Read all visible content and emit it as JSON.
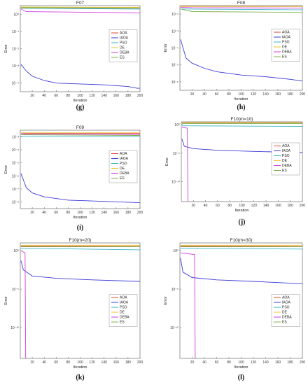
{
  "colors": {
    "AOA": "#e0453a",
    "IAOA": "#3a3ad6",
    "PSO": "#33b5c8",
    "DE": "#e8c430",
    "DEBA": "#d23ee0",
    "ES": "#7fb04a"
  },
  "chart_data": [
    {
      "type": "line",
      "title": "F07",
      "caption": "(g)",
      "xlabel": "Iteration",
      "ylabel": "Error",
      "xlim": [
        0,
        200
      ],
      "xticks": [
        20,
        40,
        60,
        80,
        100,
        120,
        140,
        160,
        180,
        200
      ],
      "yscale": "log",
      "ylim_exp": [
        -4.5,
        0.5
      ],
      "yticks": [
        {
          "e": 0,
          "label": "10⁰"
        },
        {
          "e": -1,
          "label": "10⁻¹"
        },
        {
          "e": -2,
          "label": "10⁻²"
        },
        {
          "e": -3,
          "label": "10⁻³"
        },
        {
          "e": -4,
          "label": "10⁻⁴"
        }
      ],
      "legend_position": "center-right",
      "series": [
        {
          "name": "AOA",
          "log_points": [
            [
              1,
              0.35
            ],
            [
              200,
              0.35
            ]
          ]
        },
        {
          "name": "IAOA",
          "log_points": [
            [
              1,
              -2.9
            ],
            [
              10,
              -3.3
            ],
            [
              20,
              -3.6
            ],
            [
              40,
              -3.85
            ],
            [
              60,
              -4.0
            ],
            [
              100,
              -4.05
            ],
            [
              140,
              -4.1
            ],
            [
              180,
              -4.2
            ],
            [
              195,
              -4.3
            ],
            [
              200,
              -4.3
            ]
          ]
        },
        {
          "name": "PSO",
          "log_points": [
            [
              1,
              0.35
            ],
            [
              200,
              0.3
            ]
          ]
        },
        {
          "name": "DE",
          "log_points": [
            [
              1,
              0.42
            ],
            [
              200,
              0.4
            ]
          ]
        },
        {
          "name": "DEBA",
          "log_points": [
            [
              1,
              0.3
            ],
            [
              10,
              0.15
            ],
            [
              200,
              0.08
            ]
          ]
        },
        {
          "name": "ES",
          "log_points": [
            [
              1,
              0.38
            ],
            [
              200,
              0.36
            ]
          ]
        }
      ]
    },
    {
      "type": "line",
      "title": "F08",
      "caption": "(h)",
      "xlabel": "Iteration",
      "ylabel": "Error",
      "xlim": [
        0,
        200
      ],
      "xticks": [
        20,
        40,
        60,
        80,
        100,
        120,
        140,
        160,
        180,
        200
      ],
      "yscale": "log",
      "ylim_exp": [
        -6.5,
        -1.5
      ],
      "yticks": [
        {
          "e": -2,
          "label": "10⁻²"
        },
        {
          "e": -3,
          "label": "10⁻³"
        },
        {
          "e": -4,
          "label": "10⁻⁴"
        },
        {
          "e": -5,
          "label": "10⁻⁵"
        },
        {
          "e": -6,
          "label": "10⁻⁶"
        }
      ],
      "legend_position": "center-right",
      "series": [
        {
          "name": "AOA",
          "log_points": [
            [
              1,
              -1.55
            ],
            [
              200,
              -1.55
            ]
          ]
        },
        {
          "name": "IAOA",
          "log_points": [
            [
              1,
              -3.5
            ],
            [
              10,
              -4.6
            ],
            [
              20,
              -4.9
            ],
            [
              40,
              -5.2
            ],
            [
              60,
              -5.4
            ],
            [
              100,
              -5.6
            ],
            [
              140,
              -5.7
            ],
            [
              180,
              -5.85
            ],
            [
              200,
              -5.95
            ]
          ]
        },
        {
          "name": "PSO",
          "log_points": [
            [
              1,
              -1.7
            ],
            [
              200,
              -1.75
            ]
          ]
        },
        {
          "name": "DE",
          "log_points": [
            [
              1,
              -1.55
            ],
            [
              200,
              -1.55
            ]
          ]
        },
        {
          "name": "DEBA",
          "log_points": [
            [
              1,
              -1.6
            ],
            [
              20,
              -1.62
            ],
            [
              200,
              -1.65
            ]
          ]
        },
        {
          "name": "ES",
          "log_points": [
            [
              1,
              -1.7
            ],
            [
              20,
              -1.85
            ],
            [
              200,
              -1.9
            ]
          ]
        }
      ]
    },
    {
      "type": "line",
      "title": "F09",
      "caption": "(i)",
      "xlabel": "Iteration",
      "ylabel": "Error",
      "xlim": [
        0,
        200
      ],
      "xticks": [
        20,
        40,
        60,
        80,
        100,
        120,
        140,
        160,
        180,
        200
      ],
      "yscale": "log",
      "ylim_exp": [
        -8.5,
        -2.5
      ],
      "yticks": [
        {
          "e": -3,
          "label": "10⁻³"
        },
        {
          "e": -4,
          "label": "10⁻⁴"
        },
        {
          "e": -5,
          "label": "10⁻⁵"
        },
        {
          "e": -6,
          "label": "10⁻⁶"
        },
        {
          "e": -7,
          "label": "10⁻⁷"
        },
        {
          "e": -8,
          "label": "10⁻⁸"
        }
      ],
      "legend_position": "center-right",
      "series": [
        {
          "name": "AOA",
          "log_points": [
            [
              1,
              -2.75
            ],
            [
              200,
              -2.75
            ]
          ]
        },
        {
          "name": "IAOA",
          "log_points": [
            [
              1,
              -5.8
            ],
            [
              10,
              -6.9
            ],
            [
              20,
              -7.3
            ],
            [
              40,
              -7.6
            ],
            [
              80,
              -7.85
            ],
            [
              140,
              -7.95
            ],
            [
              200,
              -8.05
            ]
          ]
        },
        {
          "name": "PSO",
          "log_points": [
            [
              1,
              -2.95
            ],
            [
              200,
              -2.95
            ]
          ]
        },
        {
          "name": "DE",
          "log_points": [
            [
              1,
              -2.7
            ],
            [
              200,
              -2.7
            ]
          ]
        },
        {
          "name": "DEBA",
          "log_points": [
            [
              1,
              -2.75
            ],
            [
              10,
              -2.8
            ],
            [
              200,
              -2.82
            ]
          ]
        },
        {
          "name": "ES",
          "log_points": [
            [
              1,
              -2.85
            ],
            [
              200,
              -2.9
            ]
          ]
        }
      ]
    },
    {
      "type": "line",
      "title": "F10(m=10)",
      "caption": "(j)",
      "xlabel": "Iteration",
      "ylabel": "Error",
      "xlim": [
        0,
        200
      ],
      "xticks": [
        20,
        40,
        60,
        80,
        100,
        120,
        140,
        160,
        180,
        200
      ],
      "yscale": "log",
      "ylim_exp": [
        -13.5,
        0.5
      ],
      "yticks": [
        {
          "e": 0,
          "label": "10⁰"
        },
        {
          "e": -5,
          "label": "10⁻⁵"
        },
        {
          "e": -10,
          "label": "10⁻¹⁰"
        }
      ],
      "legend_position": "center-right",
      "series": [
        {
          "name": "AOA",
          "log_points": [
            [
              1,
              0.3
            ],
            [
              200,
              0.3
            ]
          ]
        },
        {
          "name": "IAOA",
          "log_points": [
            [
              1,
              -2.5
            ],
            [
              5,
              -3.8
            ],
            [
              20,
              -4.2
            ],
            [
              60,
              -4.5
            ],
            [
              120,
              -4.7
            ],
            [
              200,
              -4.9
            ]
          ]
        },
        {
          "name": "PSO",
          "log_points": [
            [
              1,
              -0.2
            ],
            [
              200,
              -0.3
            ]
          ]
        },
        {
          "name": "DE",
          "log_points": [
            [
              1,
              0.35
            ],
            [
              200,
              0.35
            ]
          ]
        },
        {
          "name": "DEBA",
          "log_points": [
            [
              1,
              -0.5
            ],
            [
              10,
              -0.6
            ],
            [
              11,
              -13.5
            ]
          ]
        },
        {
          "name": "ES",
          "log_points": [
            [
              1,
              0.2
            ],
            [
              200,
              0.2
            ]
          ]
        }
      ]
    },
    {
      "type": "line",
      "title": "F10(m=20)",
      "caption": "(k)",
      "xlabel": "Iteration",
      "ylabel": "Error",
      "xlim": [
        0,
        200
      ],
      "xticks": [
        20,
        40,
        60,
        80,
        100,
        120,
        140,
        160,
        180,
        200
      ],
      "yscale": "log",
      "ylim_exp": [
        -14,
        1
      ],
      "yticks": [
        {
          "e": 0,
          "label": "10⁰"
        },
        {
          "e": -5,
          "label": "10⁻⁵"
        },
        {
          "e": -10,
          "label": "10⁻¹⁰"
        }
      ],
      "legend_position": "center-right",
      "series": [
        {
          "name": "AOA",
          "log_points": [
            [
              1,
              0.6
            ],
            [
              200,
              0.55
            ]
          ]
        },
        {
          "name": "IAOA",
          "log_points": [
            [
              1,
              -1.3
            ],
            [
              5,
              -2.5
            ],
            [
              20,
              -3.3
            ],
            [
              60,
              -3.6
            ],
            [
              120,
              -3.8
            ],
            [
              200,
              -4.0
            ]
          ]
        },
        {
          "name": "PSO",
          "log_points": [
            [
              1,
              0.3
            ],
            [
              200,
              0.1
            ]
          ]
        },
        {
          "name": "DE",
          "log_points": [
            [
              1,
              0.7
            ],
            [
              200,
              0.7
            ]
          ]
        },
        {
          "name": "DEBA",
          "log_points": [
            [
              1,
              0.0
            ],
            [
              8,
              -0.3
            ],
            [
              9,
              -14
            ]
          ]
        },
        {
          "name": "ES",
          "log_points": [
            [
              1,
              0.5
            ],
            [
              200,
              0.5
            ]
          ]
        }
      ]
    },
    {
      "type": "line",
      "title": "F10(m=30)",
      "caption": "(l)",
      "xlabel": "Iteration",
      "ylabel": "Error",
      "xlim": [
        0,
        200
      ],
      "xticks": [
        20,
        40,
        60,
        80,
        100,
        120,
        140,
        160,
        180,
        200
      ],
      "yscale": "log",
      "ylim_exp": [
        -14,
        1
      ],
      "yticks": [
        {
          "e": 0,
          "label": "10⁰"
        },
        {
          "e": -5,
          "label": "10⁻⁵"
        },
        {
          "e": -10,
          "label": "10⁻¹⁰"
        }
      ],
      "legend_position": "center-right",
      "series": [
        {
          "name": "AOA",
          "log_points": [
            [
              1,
              0.6
            ],
            [
              200,
              0.55
            ]
          ]
        },
        {
          "name": "IAOA",
          "log_points": [
            [
              1,
              -1.0
            ],
            [
              5,
              -2.8
            ],
            [
              20,
              -3.5
            ],
            [
              60,
              -3.8
            ],
            [
              120,
              -4.0
            ],
            [
              200,
              -4.3
            ]
          ]
        },
        {
          "name": "PSO",
          "log_points": [
            [
              1,
              0.3
            ],
            [
              200,
              0.2
            ]
          ]
        },
        {
          "name": "DE",
          "log_points": [
            [
              1,
              0.7
            ],
            [
              200,
              0.7
            ]
          ]
        },
        {
          "name": "DEBA",
          "log_points": [
            [
              1,
              -0.3
            ],
            [
              24,
              -0.5
            ],
            [
              25,
              -14
            ]
          ]
        },
        {
          "name": "ES",
          "log_points": [
            [
              1,
              0.5
            ],
            [
              200,
              0.5
            ]
          ]
        }
      ]
    }
  ]
}
